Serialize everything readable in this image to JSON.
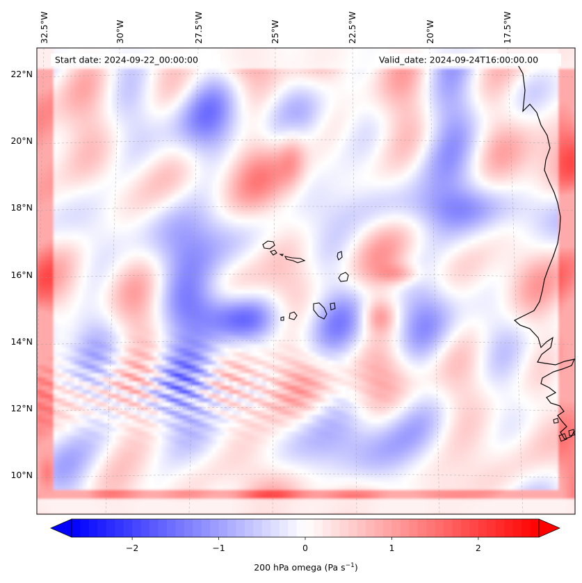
{
  "header": {
    "start_date": "Start date: 2024-09-22_00:00:00",
    "valid_date": "Valid_date: 2024-09-24T16:00:00.00"
  },
  "map": {
    "field": "200 hPa omega",
    "colormap": "bwr",
    "coastline_color": "#000000",
    "gridlines": true,
    "lon_ticks": [
      "32.5°W",
      "30°W",
      "27.5°W",
      "25°W",
      "22.5°W",
      "20°W",
      "17.5°W"
    ],
    "lat_ticks": [
      "22°N",
      "20°N",
      "18°N",
      "16°N",
      "14°N",
      "12°N",
      "10°N"
    ]
  },
  "colorbar": {
    "label_main": "200 hPa omega (Pa s",
    "label_sup": "−1",
    "label_end": ")",
    "range": [
      -2.7,
      2.7
    ],
    "extend": "both",
    "ticks": [
      "−2",
      "−1",
      "0",
      "1",
      "2"
    ],
    "tick_values": [
      -2,
      -1,
      0,
      1,
      2
    ],
    "colors": {
      "low": "#0000ff",
      "mid": "#ffffff",
      "high": "#ff0000"
    }
  }
}
